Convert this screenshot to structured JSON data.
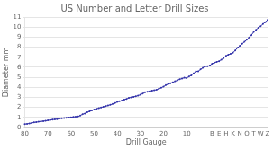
{
  "chart_data": {
    "type": "line",
    "title": "US Number and Letter Drill Sizes",
    "xlabel": "Drill Gauge",
    "ylabel": "Diameter mm",
    "categories": [
      "80",
      null,
      null,
      null,
      null,
      null,
      null,
      null,
      null,
      null,
      "70",
      null,
      null,
      null,
      null,
      null,
      null,
      null,
      null,
      null,
      "60",
      null,
      null,
      null,
      null,
      null,
      null,
      null,
      null,
      null,
      "50",
      null,
      null,
      null,
      null,
      null,
      null,
      null,
      null,
      null,
      "40",
      null,
      null,
      null,
      null,
      null,
      null,
      null,
      null,
      null,
      "30",
      null,
      null,
      null,
      null,
      null,
      null,
      null,
      null,
      null,
      "20",
      null,
      null,
      null,
      null,
      null,
      null,
      null,
      null,
      null,
      "10",
      null,
      null,
      null,
      null,
      null,
      null,
      null,
      null,
      null,
      null,
      "B",
      null,
      null,
      "E",
      null,
      null,
      "H",
      null,
      null,
      "K",
      null,
      null,
      "N",
      null,
      null,
      "Q",
      null,
      null,
      "T",
      null,
      null,
      "W",
      null,
      null,
      "Z"
    ],
    "values": [
      0.3429,
      0.3683,
      0.4064,
      0.4572,
      0.508,
      0.5334,
      0.5715,
      0.6096,
      0.635,
      0.6604,
      0.7112,
      0.7417,
      0.7874,
      0.8128,
      0.8382,
      0.889,
      0.9144,
      0.9398,
      0.9652,
      0.9906,
      1.016,
      1.0414,
      1.0668,
      1.0922,
      1.1811,
      1.3208,
      1.397,
      1.5113,
      1.6129,
      1.7018,
      1.778,
      1.8542,
      1.9304,
      1.9939,
      2.0574,
      2.1209,
      2.1844,
      2.2606,
      2.3368,
      2.4384,
      2.54,
      2.6162,
      2.6924,
      2.7686,
      2.8448,
      2.9464,
      2.9972,
      3.048,
      3.0988,
      3.175,
      3.2639,
      3.3655,
      3.5052,
      3.556,
      3.6068,
      3.6576,
      3.7084,
      3.7592,
      3.8608,
      3.9624,
      4.064,
      4.2164,
      4.3053,
      4.3942,
      4.4958,
      4.5974,
      4.699,
      4.8006,
      4.8768,
      4.953,
      4.9149,
      5.08,
      5.1816,
      5.3848,
      5.588,
      5.588,
      5.7912,
      5.9436,
      6.096,
      6.096,
      6.1722,
      6.35,
      6.4516,
      6.5278,
      6.604,
      6.7564,
      6.9088,
      7.1374,
      7.239,
      7.3406,
      7.4422,
      7.6708,
      7.9375,
      8.128,
      8.3312,
      8.5344,
      8.7376,
      8.9662,
      9.1948,
      9.525,
      9.7282,
      9.9314,
      10.0838,
      10.3124,
      10.4902,
      10.7188
    ],
    "color": "#3333aa",
    "marker": "dot",
    "ylim": [
      0,
      11
    ],
    "yticks": [
      0,
      1,
      2,
      3,
      4,
      5,
      6,
      7,
      8,
      9,
      10,
      11
    ],
    "grid": "y"
  }
}
